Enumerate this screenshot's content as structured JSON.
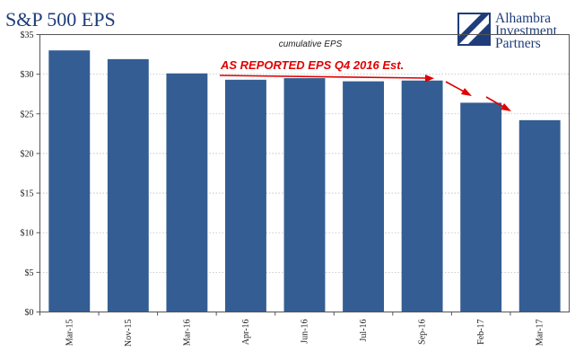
{
  "chart_data": {
    "type": "bar",
    "title": "S&P 500 EPS",
    "subtitle": "cumulative EPS",
    "categories": [
      "Mar-15",
      "Nov-15",
      "Mar-16",
      "Apr-16",
      "Jun-16",
      "Jul-16",
      "Sep-16",
      "Feb-17",
      "Mar-17"
    ],
    "values": [
      33.0,
      31.9,
      30.1,
      29.3,
      29.5,
      29.1,
      29.2,
      26.4,
      24.2
    ],
    "ylim": [
      0,
      35
    ],
    "yticks": [
      0,
      5,
      10,
      15,
      20,
      25,
      30,
      35
    ],
    "ytick_labels": [
      "$0",
      "$5",
      "$10",
      "$15",
      "$20",
      "$25",
      "$30",
      "$35"
    ],
    "grid": true,
    "bar_color": "#345d93",
    "annotation": {
      "text": "AS REPORTED EPS Q4 2016 Est.",
      "color": "#e00000"
    }
  },
  "logo": {
    "icon": "alhambra-logo-icon",
    "lines": [
      "Alhambra",
      "Investment",
      "Partners"
    ],
    "color": "#1f3d7a"
  }
}
